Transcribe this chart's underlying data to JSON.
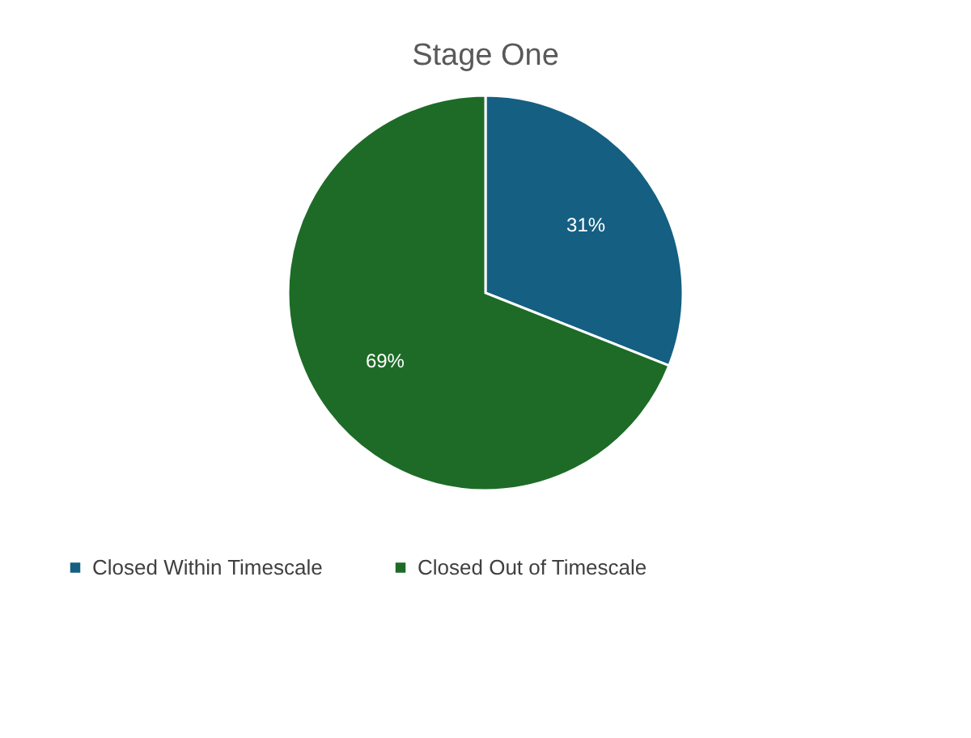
{
  "chart_data": {
    "type": "pie",
    "title": "Stage One",
    "categories": [
      "Closed Within Timescale",
      "Closed Out of Timescale"
    ],
    "values": [
      31,
      69
    ],
    "colors": [
      "#155f82",
      "#1d6b27"
    ],
    "value_labels": [
      "31%",
      "69%"
    ],
    "legend": "bottom"
  }
}
